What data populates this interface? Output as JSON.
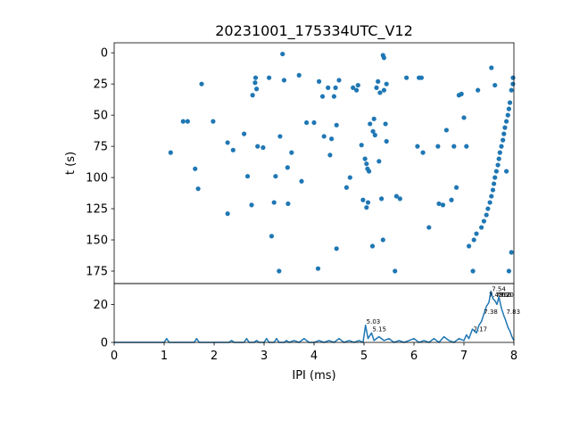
{
  "chart_data": {
    "type": "scatter",
    "title": "20231001_175334UTC_V12",
    "panels": [
      {
        "id": "raster",
        "type": "scatter",
        "ylabel": "t (s)",
        "xlim": [
          0,
          8
        ],
        "ylim": [
          185,
          -8
        ],
        "y_inverted": true,
        "yticks": [
          0,
          25,
          50,
          75,
          100,
          125,
          150,
          175
        ],
        "color": "#1f77b4",
        "points": [
          [
            1.13,
            80
          ],
          [
            1.38,
            55
          ],
          [
            1.47,
            55
          ],
          [
            1.62,
            93
          ],
          [
            1.68,
            109
          ],
          [
            1.75,
            25
          ],
          [
            1.98,
            55
          ],
          [
            2.27,
            72
          ],
          [
            2.27,
            129
          ],
          [
            2.38,
            78
          ],
          [
            2.6,
            65
          ],
          [
            2.67,
            99
          ],
          [
            2.75,
            122
          ],
          [
            2.77,
            34
          ],
          [
            2.82,
            24
          ],
          [
            2.83,
            20
          ],
          [
            2.85,
            29
          ],
          [
            2.87,
            75
          ],
          [
            2.98,
            76
          ],
          [
            3.1,
            20
          ],
          [
            3.15,
            147
          ],
          [
            3.2,
            120
          ],
          [
            3.23,
            99
          ],
          [
            3.3,
            175
          ],
          [
            3.32,
            67
          ],
          [
            3.37,
            1
          ],
          [
            3.4,
            22
          ],
          [
            3.47,
            92
          ],
          [
            3.48,
            121
          ],
          [
            3.55,
            80
          ],
          [
            3.7,
            18
          ],
          [
            3.75,
            103
          ],
          [
            3.85,
            56
          ],
          [
            4.0,
            56
          ],
          [
            4.08,
            173
          ],
          [
            4.1,
            23
          ],
          [
            4.17,
            35
          ],
          [
            4.2,
            67
          ],
          [
            4.28,
            28
          ],
          [
            4.32,
            82
          ],
          [
            4.35,
            69
          ],
          [
            4.4,
            35
          ],
          [
            4.43,
            28
          ],
          [
            4.45,
            157
          ],
          [
            4.45,
            58
          ],
          [
            4.5,
            22
          ],
          [
            4.65,
            108
          ],
          [
            4.72,
            100
          ],
          [
            4.78,
            28
          ],
          [
            4.85,
            30
          ],
          [
            4.88,
            26
          ],
          [
            4.95,
            74
          ],
          [
            4.98,
            118
          ],
          [
            5.02,
            85
          ],
          [
            5.05,
            89
          ],
          [
            5.07,
            93
          ],
          [
            5.05,
            124
          ],
          [
            5.08,
            120
          ],
          [
            5.1,
            95
          ],
          [
            5.12,
            57
          ],
          [
            5.17,
            155
          ],
          [
            5.18,
            63
          ],
          [
            5.2,
            53
          ],
          [
            5.22,
            66
          ],
          [
            5.25,
            28
          ],
          [
            5.28,
            23
          ],
          [
            5.3,
            87
          ],
          [
            5.32,
            32
          ],
          [
            5.35,
            117
          ],
          [
            5.38,
            150
          ],
          [
            5.4,
            30
          ],
          [
            5.38,
            2
          ],
          [
            5.4,
            4
          ],
          [
            5.43,
            57
          ],
          [
            5.45,
            25
          ],
          [
            5.45,
            71
          ],
          [
            5.62,
            175
          ],
          [
            5.65,
            115
          ],
          [
            5.72,
            117
          ],
          [
            5.85,
            20
          ],
          [
            6.07,
            75
          ],
          [
            6.1,
            20
          ],
          [
            6.15,
            20
          ],
          [
            6.18,
            80
          ],
          [
            6.3,
            140
          ],
          [
            6.48,
            75
          ],
          [
            6.5,
            121
          ],
          [
            6.58,
            122
          ],
          [
            6.65,
            62
          ],
          [
            6.75,
            118
          ],
          [
            6.8,
            75
          ],
          [
            6.85,
            108
          ],
          [
            6.9,
            34
          ],
          [
            6.95,
            33
          ],
          [
            7.0,
            52
          ],
          [
            7.05,
            75
          ],
          [
            7.1,
            155
          ],
          [
            7.18,
            175
          ],
          [
            7.2,
            150
          ],
          [
            7.25,
            145
          ],
          [
            7.28,
            30
          ],
          [
            7.35,
            140
          ],
          [
            7.4,
            135
          ],
          [
            7.45,
            130
          ],
          [
            7.48,
            125
          ],
          [
            7.52,
            120
          ],
          [
            7.55,
            115
          ],
          [
            7.58,
            110
          ],
          [
            7.6,
            105
          ],
          [
            7.62,
            100
          ],
          [
            7.65,
            95
          ],
          [
            7.68,
            90
          ],
          [
            7.7,
            85
          ],
          [
            7.72,
            80
          ],
          [
            7.75,
            75
          ],
          [
            7.78,
            70
          ],
          [
            7.8,
            65
          ],
          [
            7.82,
            60
          ],
          [
            7.85,
            55
          ],
          [
            7.88,
            50
          ],
          [
            7.9,
            45
          ],
          [
            7.92,
            40
          ],
          [
            7.95,
            30
          ],
          [
            7.98,
            25
          ],
          [
            8.0,
            20
          ],
          [
            7.55,
            12
          ],
          [
            7.62,
            26
          ],
          [
            7.85,
            95
          ],
          [
            7.9,
            175
          ],
          [
            7.95,
            160
          ]
        ]
      },
      {
        "id": "histogram",
        "type": "line",
        "xlabel": "IPI (ms)",
        "xlim": [
          0,
          8
        ],
        "ylim": [
          0,
          31
        ],
        "xticks": [
          0,
          1,
          2,
          3,
          4,
          5,
          6,
          7,
          8
        ],
        "yticks": [
          0,
          20
        ],
        "color": "#1f77b4",
        "series": [
          {
            "x": [
              0.0,
              1.0,
              1.05,
              1.1,
              1.15,
              1.6,
              1.65,
              1.7,
              2.3,
              2.35,
              2.4,
              2.6,
              2.65,
              2.7,
              2.8,
              2.85,
              2.9,
              3.0,
              3.05,
              3.1,
              3.2,
              3.25,
              3.3,
              3.4,
              3.45,
              3.5,
              3.6,
              3.7,
              3.8,
              3.9,
              4.0,
              4.1,
              4.2,
              4.3,
              4.4,
              4.5,
              4.6,
              4.7,
              4.8,
              4.9,
              4.98,
              5.03,
              5.08,
              5.15,
              5.2,
              5.3,
              5.4,
              5.5,
              5.6,
              5.7,
              5.8,
              5.9,
              6.0,
              6.1,
              6.2,
              6.3,
              6.4,
              6.5,
              6.6,
              6.7,
              6.8,
              6.9,
              7.0,
              7.05,
              7.1,
              7.17,
              7.25,
              7.3,
              7.35,
              7.4,
              7.45,
              7.5,
              7.54,
              7.58,
              7.62,
              7.66,
              7.7,
              7.75,
              7.8,
              7.83,
              7.88,
              7.92,
              7.96,
              8.0
            ],
            "values": [
              0,
              0,
              2,
              0,
              0,
              0,
              2,
              0,
              0,
              1,
              0,
              0,
              2,
              0,
              0,
              1,
              0,
              0,
              2,
              0,
              0,
              2,
              0,
              0,
              1,
              0,
              1,
              0,
              2,
              0,
              0,
              1,
              0,
              1,
              0,
              2,
              0,
              1,
              0,
              1,
              0,
              9,
              2,
              5,
              1,
              3,
              1,
              2,
              0,
              1,
              0,
              1,
              2,
              0,
              1,
              0,
              2,
              0,
              3,
              1,
              0,
              2,
              1,
              4,
              2,
              7,
              5,
              9,
              11,
              15,
              19,
              21,
              27,
              23,
              22,
              20,
              24,
              18,
              14,
              12,
              8,
              6,
              3,
              1
            ]
          }
        ],
        "annotations": [
          {
            "x": 5.03,
            "y": 9,
            "text": "5.03"
          },
          {
            "x": 5.15,
            "y": 5,
            "text": "5.15"
          },
          {
            "x": 7.17,
            "y": 5,
            "text": "7.17"
          },
          {
            "x": 7.38,
            "y": 14,
            "text": "7.38"
          },
          {
            "x": 7.54,
            "y": 26,
            "text": "7.54"
          },
          {
            "x": 7.48,
            "y": 23,
            "text": "7.48"
          },
          {
            "x": 7.62,
            "y": 23,
            "text": "7.62"
          },
          {
            "x": 7.66,
            "y": 23,
            "text": "7.66"
          },
          {
            "x": 7.7,
            "y": 23,
            "text": "7.70"
          },
          {
            "x": 7.83,
            "y": 14,
            "text": "7.83"
          }
        ]
      }
    ]
  }
}
